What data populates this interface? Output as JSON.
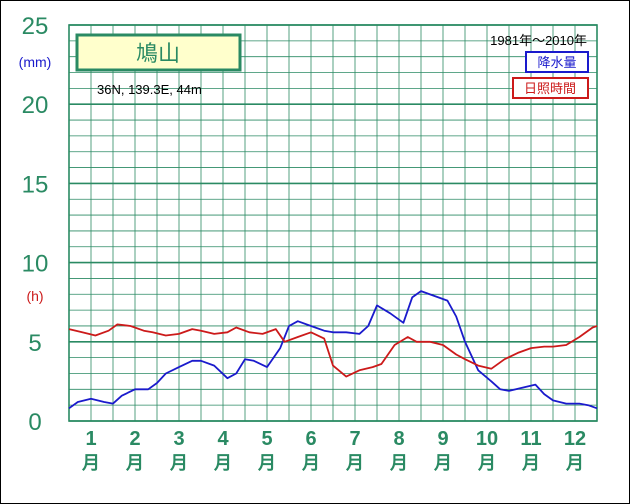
{
  "chart_data": {
    "type": "line",
    "title": "鳩山",
    "subtitle": "36N, 139.3E, 44m",
    "period": "1981年〜2010年",
    "units": {
      "precip": "(mm)",
      "sunshine": "(h)"
    },
    "ylim": [
      0,
      25
    ],
    "yticks": [
      "0",
      "5",
      "10",
      "15",
      "20",
      "25"
    ],
    "months": [
      "1",
      "2",
      "3",
      "4",
      "5",
      "6",
      "7",
      "8",
      "9",
      "10",
      "11",
      "12"
    ],
    "month_suffix": "月",
    "series": [
      {
        "name": "降水量",
        "color": "#1a1acc",
        "x": [
          0.0,
          0.2,
          0.5,
          0.8,
          1.0,
          1.2,
          1.5,
          1.8,
          2.0,
          2.2,
          2.5,
          2.8,
          3.0,
          3.3,
          3.6,
          3.8,
          4.0,
          4.2,
          4.5,
          4.8,
          5.0,
          5.2,
          5.5,
          5.8,
          6.0,
          6.3,
          6.6,
          6.8,
          7.0,
          7.3,
          7.6,
          7.8,
          8.0,
          8.3,
          8.6,
          8.8,
          9.0,
          9.3,
          9.6,
          9.8,
          10.0,
          10.3,
          10.6,
          10.8,
          11.0,
          11.3,
          11.6,
          11.8,
          12.0
        ],
        "values": [
          0.8,
          1.2,
          1.4,
          1.2,
          1.1,
          1.6,
          2.0,
          2.0,
          2.4,
          3.0,
          3.4,
          3.8,
          3.8,
          3.5,
          2.7,
          3.0,
          3.9,
          3.8,
          3.4,
          4.6,
          6.0,
          6.3,
          6.0,
          5.7,
          5.6,
          5.6,
          5.5,
          6.0,
          7.3,
          6.8,
          6.2,
          7.8,
          8.2,
          7.9,
          7.6,
          6.6,
          5.0,
          3.2,
          2.5,
          2.0,
          1.9,
          2.1,
          2.3,
          1.7,
          1.3,
          1.1,
          1.1,
          1.0,
          0.8
        ]
      },
      {
        "name": "日照時間",
        "color": "#cc1a1a",
        "x": [
          0.0,
          0.3,
          0.6,
          0.9,
          1.1,
          1.4,
          1.7,
          1.9,
          2.2,
          2.5,
          2.8,
          3.0,
          3.3,
          3.6,
          3.8,
          4.1,
          4.4,
          4.7,
          4.9,
          5.2,
          5.5,
          5.8,
          6.0,
          6.3,
          6.6,
          6.9,
          7.1,
          7.4,
          7.7,
          7.9,
          8.2,
          8.5,
          8.8,
          9.0,
          9.3,
          9.6,
          9.9,
          10.2,
          10.5,
          10.8,
          11.0,
          11.3,
          11.6,
          11.9,
          12.0
        ],
        "values": [
          5.8,
          5.6,
          5.4,
          5.7,
          6.1,
          6.0,
          5.7,
          5.6,
          5.4,
          5.5,
          5.8,
          5.7,
          5.5,
          5.6,
          5.9,
          5.6,
          5.5,
          5.8,
          5.0,
          5.3,
          5.6,
          5.2,
          3.5,
          2.8,
          3.2,
          3.4,
          3.6,
          4.8,
          5.3,
          5.0,
          5.0,
          4.8,
          4.2,
          3.9,
          3.5,
          3.3,
          3.9,
          4.3,
          4.6,
          4.7,
          4.7,
          4.8,
          5.3,
          5.9,
          6.0
        ]
      }
    ],
    "grid": true
  }
}
